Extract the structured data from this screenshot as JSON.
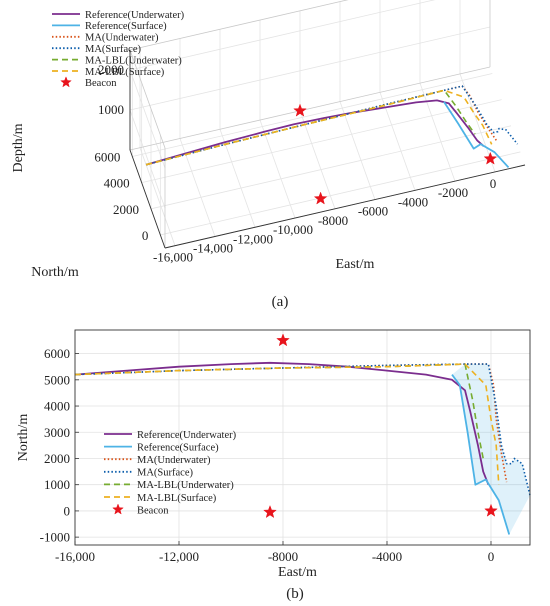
{
  "chart_data": [
    {
      "type": "line",
      "panel_label": "(a)",
      "projection": "3d",
      "xlabel": "East/m",
      "ylabel": "North/m",
      "zlabel": "Depth/m",
      "x_ticks": [
        "-16,000",
        "-14,000",
        "-12,000",
        "-10,000",
        "-8000",
        "-6000",
        "-4000",
        "-2000",
        "0"
      ],
      "y_ticks": [
        "0",
        "2000",
        "4000",
        "6000"
      ],
      "z_ticks": [
        "1000",
        "2000"
      ],
      "xlim": [
        -16500,
        1500
      ],
      "ylim": [
        -1000,
        6500
      ],
      "zlim": [
        0,
        2500
      ],
      "grid": true,
      "legend_position": "top-left",
      "series": [
        {
          "name": "Reference(Underwater)",
          "color": "#7B2D8E",
          "style": "solid",
          "points": [
            [
              -16000,
              5200,
              0
            ],
            [
              -14000,
              5350,
              0
            ],
            [
              -12000,
              5500,
              0
            ],
            [
              -10000,
              5600,
              0
            ],
            [
              -8500,
              5650,
              0
            ],
            [
              -7000,
              5600,
              0
            ],
            [
              -5500,
              5500,
              0
            ],
            [
              -4000,
              5350,
              0
            ],
            [
              -2500,
              5200,
              0
            ],
            [
              -1500,
              5000,
              0
            ],
            [
              -1000,
              4600,
              0
            ],
            [
              -800,
              3800,
              0
            ],
            [
              -500,
              2500,
              0
            ],
            [
              -300,
              1500,
              0
            ],
            [
              -100,
              1000,
              0
            ]
          ]
        },
        {
          "name": "Reference(Surface)",
          "color": "#4DB3E6",
          "style": "solid",
          "points": [
            [
              -1200,
              4800,
              0
            ],
            [
              -900,
              3000,
              0
            ],
            [
              -600,
              1000,
              0
            ],
            [
              -200,
              1200,
              0
            ],
            [
              300,
              400,
              0
            ],
            [
              700,
              -900,
              0
            ]
          ]
        },
        {
          "name": "MA(Underwater)",
          "color": "#D9541A",
          "style": "dotted",
          "points": [
            [
              -16000,
              5200,
              0
            ],
            [
              -12000,
              5350,
              0
            ],
            [
              -8000,
              5450,
              0
            ],
            [
              -4000,
              5550,
              0
            ],
            [
              -1000,
              5600,
              0
            ],
            [
              -100,
              5600,
              0
            ],
            [
              100,
              4800,
              0
            ],
            [
              200,
              3500,
              0
            ],
            [
              400,
              2200,
              0
            ],
            [
              600,
              1100,
              0
            ]
          ]
        },
        {
          "name": "MA(Surface)",
          "color": "#0B5DAB",
          "style": "dotted",
          "points": [
            [
              -16000,
              5200,
              0
            ],
            [
              -12000,
              5350,
              0
            ],
            [
              -8000,
              5450,
              0
            ],
            [
              -4000,
              5550,
              0
            ],
            [
              -1000,
              5600,
              0
            ],
            [
              -100,
              5600,
              0
            ],
            [
              200,
              4000,
              0
            ],
            [
              400,
              2500,
              0
            ],
            [
              600,
              1800,
              0
            ],
            [
              800,
              1800,
              0
            ],
            [
              900,
              2000,
              0
            ],
            [
              1200,
              1800,
              0
            ],
            [
              1500,
              600,
              0
            ]
          ]
        },
        {
          "name": "MA-LBL(Underwater)",
          "color": "#77AC30",
          "style": "dashed",
          "points": [
            [
              -16000,
              5200,
              0
            ],
            [
              -12000,
              5350,
              0
            ],
            [
              -8000,
              5450,
              0
            ],
            [
              -4000,
              5500,
              0
            ],
            [
              -1000,
              5600,
              0
            ],
            [
              -700,
              4200,
              0
            ],
            [
              -500,
              3000,
              0
            ],
            [
              -300,
              2000,
              0
            ]
          ]
        },
        {
          "name": "MA-LBL(Surface)",
          "color": "#EDB120",
          "style": "dashed",
          "points": [
            [
              -16000,
              5200,
              0
            ],
            [
              -12000,
              5350,
              0
            ],
            [
              -8000,
              5450,
              0
            ],
            [
              -4000,
              5500,
              0
            ],
            [
              -1000,
              5600,
              0
            ],
            [
              -200,
              4800,
              0
            ],
            [
              0,
              3500,
              0
            ],
            [
              200,
              2500,
              0
            ],
            [
              300,
              1000,
              0
            ]
          ]
        }
      ],
      "beacons": {
        "name": "Beacon",
        "color": "#E8141C",
        "points": [
          [
            -8000,
            6500,
            0
          ],
          [
            -8500,
            -50,
            0
          ],
          [
            0,
            0,
            0
          ]
        ]
      }
    },
    {
      "type": "line",
      "panel_label": "(b)",
      "xlabel": "East/m",
      "ylabel": "North/m",
      "x_ticks": [
        -16000,
        -12000,
        -8000,
        -4000,
        0
      ],
      "x_tick_labels": [
        "-16,000",
        "-12,000",
        "-8000",
        "-4000",
        "0"
      ],
      "y_ticks": [
        -1000,
        0,
        1000,
        2000,
        3000,
        4000,
        5000,
        6000
      ],
      "xlim": [
        -16000,
        1500
      ],
      "ylim": [
        -1300,
        6900
      ],
      "grid": true,
      "legend_position": "bottom-left",
      "shaded_region": {
        "color": "#4DB3E6",
        "opacity": 0.18,
        "points": [
          [
            -1000,
            5600
          ],
          [
            -100,
            5600
          ],
          [
            200,
            4000
          ],
          [
            400,
            2500
          ],
          [
            600,
            1800
          ],
          [
            800,
            1800
          ],
          [
            900,
            2000
          ],
          [
            1200,
            1800
          ],
          [
            1500,
            600
          ],
          [
            700,
            -900
          ],
          [
            300,
            400
          ],
          [
            -200,
            1200
          ],
          [
            -600,
            1000
          ],
          [
            -900,
            3000
          ],
          [
            -1200,
            4800
          ],
          [
            -1500,
            5200
          ]
        ]
      },
      "series": [
        {
          "name": "Reference(Underwater)",
          "color": "#7B2D8E",
          "style": "solid",
          "points": [
            [
              -16000,
              5200
            ],
            [
              -14000,
              5350
            ],
            [
              -12000,
              5500
            ],
            [
              -10000,
              5600
            ],
            [
              -8500,
              5650
            ],
            [
              -7000,
              5600
            ],
            [
              -5500,
              5500
            ],
            [
              -4000,
              5350
            ],
            [
              -2500,
              5200
            ],
            [
              -1500,
              5000
            ],
            [
              -1000,
              4600
            ],
            [
              -800,
              3800
            ],
            [
              -500,
              2500
            ],
            [
              -300,
              1500
            ],
            [
              -100,
              1000
            ]
          ]
        },
        {
          "name": "Reference(Surface)",
          "color": "#4DB3E6",
          "style": "solid",
          "points": [
            [
              -1500,
              5200
            ],
            [
              -1200,
              4800
            ],
            [
              -900,
              3000
            ],
            [
              -600,
              1000
            ],
            [
              -200,
              1200
            ],
            [
              300,
              400
            ],
            [
              700,
              -900
            ]
          ]
        },
        {
          "name": "MA(Underwater)",
          "color": "#D9541A",
          "style": "dotted",
          "points": [
            [
              -16000,
              5200
            ],
            [
              -12000,
              5350
            ],
            [
              -8000,
              5450
            ],
            [
              -4000,
              5550
            ],
            [
              -1000,
              5600
            ],
            [
              -100,
              5600
            ],
            [
              100,
              4800
            ],
            [
              200,
              3500
            ],
            [
              400,
              2200
            ],
            [
              600,
              1100
            ]
          ]
        },
        {
          "name": "MA(Surface)",
          "color": "#0B5DAB",
          "style": "dotted",
          "points": [
            [
              -16000,
              5200
            ],
            [
              -12000,
              5350
            ],
            [
              -8000,
              5450
            ],
            [
              -4000,
              5550
            ],
            [
              -1000,
              5600
            ],
            [
              -100,
              5600
            ],
            [
              200,
              4000
            ],
            [
              400,
              2500
            ],
            [
              600,
              1800
            ],
            [
              800,
              1800
            ],
            [
              900,
              2000
            ],
            [
              1200,
              1800
            ],
            [
              1500,
              600
            ]
          ]
        },
        {
          "name": "MA-LBL(Underwater)",
          "color": "#77AC30",
          "style": "dashed",
          "points": [
            [
              -16000,
              5200
            ],
            [
              -12000,
              5350
            ],
            [
              -8000,
              5450
            ],
            [
              -4000,
              5500
            ],
            [
              -1000,
              5600
            ],
            [
              -700,
              4200
            ],
            [
              -500,
              3000
            ],
            [
              -300,
              2000
            ]
          ]
        },
        {
          "name": "MA-LBL(Surface)",
          "color": "#EDB120",
          "style": "dashed",
          "points": [
            [
              -16000,
              5200
            ],
            [
              -12000,
              5350
            ],
            [
              -8000,
              5450
            ],
            [
              -4000,
              5500
            ],
            [
              -1000,
              5600
            ],
            [
              -200,
              4800
            ],
            [
              0,
              3500
            ],
            [
              200,
              2500
            ],
            [
              300,
              1000
            ]
          ]
        }
      ],
      "beacons": {
        "name": "Beacon",
        "color": "#E8141C",
        "points": [
          [
            -8000,
            6500
          ],
          [
            -8500,
            -50
          ],
          [
            0,
            0
          ]
        ]
      }
    }
  ]
}
